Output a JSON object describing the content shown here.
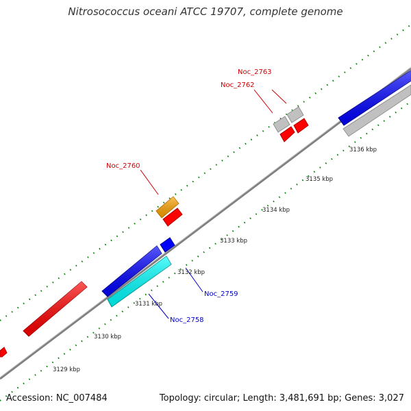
{
  "title": "Nitrosococcus oceani ATCC 19707, complete genome",
  "footer": {
    "accession": "Accession: NC_007484",
    "summary": "Topology: circular; Length: 3,481,691 bp; Genes: 3,027"
  },
  "colors": {
    "forward_cds": "#ff0000",
    "reverse_cds": "#0000ff",
    "trna": "#ffa500",
    "other": "#c0c0c0",
    "highlight": "#00ffff",
    "backbone": "#808080",
    "ticks": "#008000",
    "forward_label": "#cc0000",
    "reverse_label": "#0000cc"
  },
  "ticks": [
    "3129 kbp",
    "3130 kbp",
    "3131 kbp",
    "3132 kbp",
    "3133 kbp",
    "3134 kbp",
    "3135 kbp",
    "3136 kbp"
  ],
  "gene_labels": [
    {
      "name": "Noc_2763",
      "strand": "forward"
    },
    {
      "name": "Noc_2762",
      "strand": "forward"
    },
    {
      "name": "Noc_2760",
      "strand": "forward"
    },
    {
      "name": "Noc_2759",
      "strand": "reverse"
    },
    {
      "name": "Noc_2758",
      "strand": "reverse"
    }
  ]
}
